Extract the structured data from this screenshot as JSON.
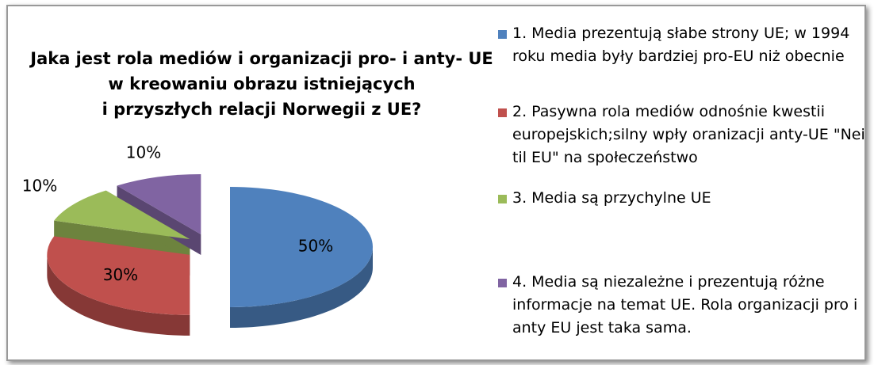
{
  "chart_data": {
    "type": "pie",
    "title": [
      "Jaka jest rola mediów i organizacji pro- i anty- UE",
      "w kreowaniu obrazu istniejących",
      "i przyszłych relacji Norwegii z UE?"
    ],
    "categories": [
      "1. Media prezentują słabe strony UE; w 1994 roku media były bardziej pro-EU niż obecnie",
      "2. Pasywna rola mediów odnośnie kwestii europejskich;silny wpły oranizacji anty-UE \"Nei til EU\" na społeczeństwo",
      "3. Media są przychylne UE",
      "4. Media są niezależne i prezentują różne informacje na temat UE. Rola organizacji pro i anty EU jest taka sama."
    ],
    "values": [
      50,
      30,
      10,
      10
    ],
    "value_labels": [
      "50%",
      "30%",
      "10%",
      "10%"
    ],
    "colors": [
      "#4f81bd",
      "#c0504d",
      "#9bbb59",
      "#8064a2"
    ],
    "legend": "right"
  }
}
